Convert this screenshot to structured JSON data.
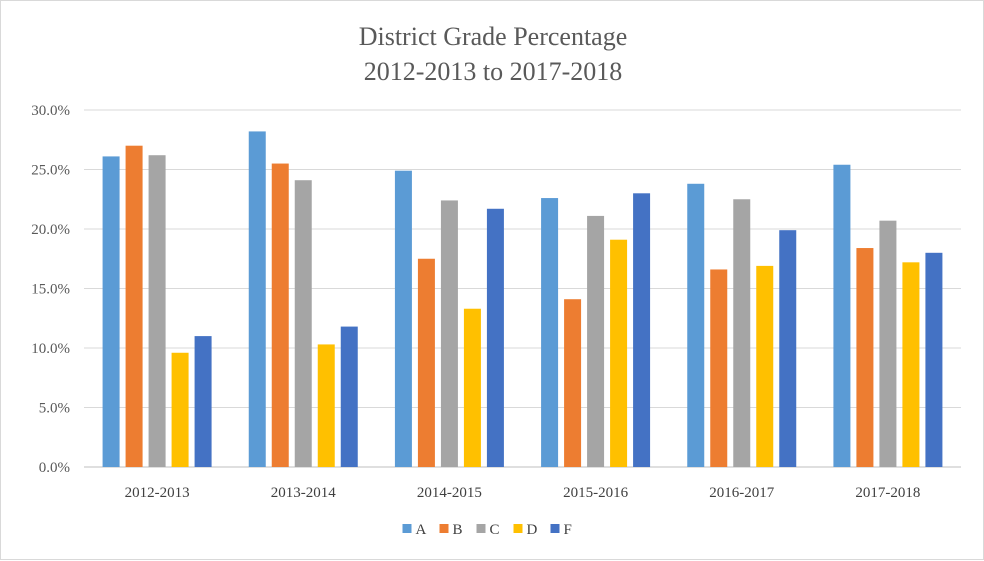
{
  "chart_data": {
    "type": "bar",
    "title": "District Grade Percentage",
    "subtitle": "2012-2013 to 2017-2018",
    "xlabel": "",
    "ylabel": "",
    "ylim": [
      0,
      30
    ],
    "y_ticks": [
      0,
      5,
      10,
      15,
      20,
      25,
      30
    ],
    "y_tick_labels": [
      "0.0%",
      "5.0%",
      "10.0%",
      "15.0%",
      "20.0%",
      "25.0%",
      "30.0%"
    ],
    "grid": true,
    "legend_position": "bottom",
    "categories": [
      "2012-2013",
      "2013-2014",
      "2014-2015",
      "2015-2016",
      "2016-2017",
      "2017-2018"
    ],
    "series": [
      {
        "name": "A",
        "color": "#5b9bd5",
        "values": [
          26.1,
          28.2,
          24.9,
          22.6,
          23.8,
          25.4
        ]
      },
      {
        "name": "B",
        "color": "#ed7d31",
        "values": [
          27.0,
          25.5,
          17.5,
          14.1,
          16.6,
          18.4
        ]
      },
      {
        "name": "C",
        "color": "#a5a5a5",
        "values": [
          26.2,
          24.1,
          22.4,
          21.1,
          22.5,
          20.7
        ]
      },
      {
        "name": "D",
        "color": "#ffc000",
        "values": [
          9.6,
          10.3,
          13.3,
          19.1,
          16.9,
          17.2
        ]
      },
      {
        "name": "F",
        "color": "#4472c4",
        "values": [
          11.0,
          11.8,
          21.7,
          23.0,
          19.9,
          18.0
        ]
      }
    ]
  }
}
